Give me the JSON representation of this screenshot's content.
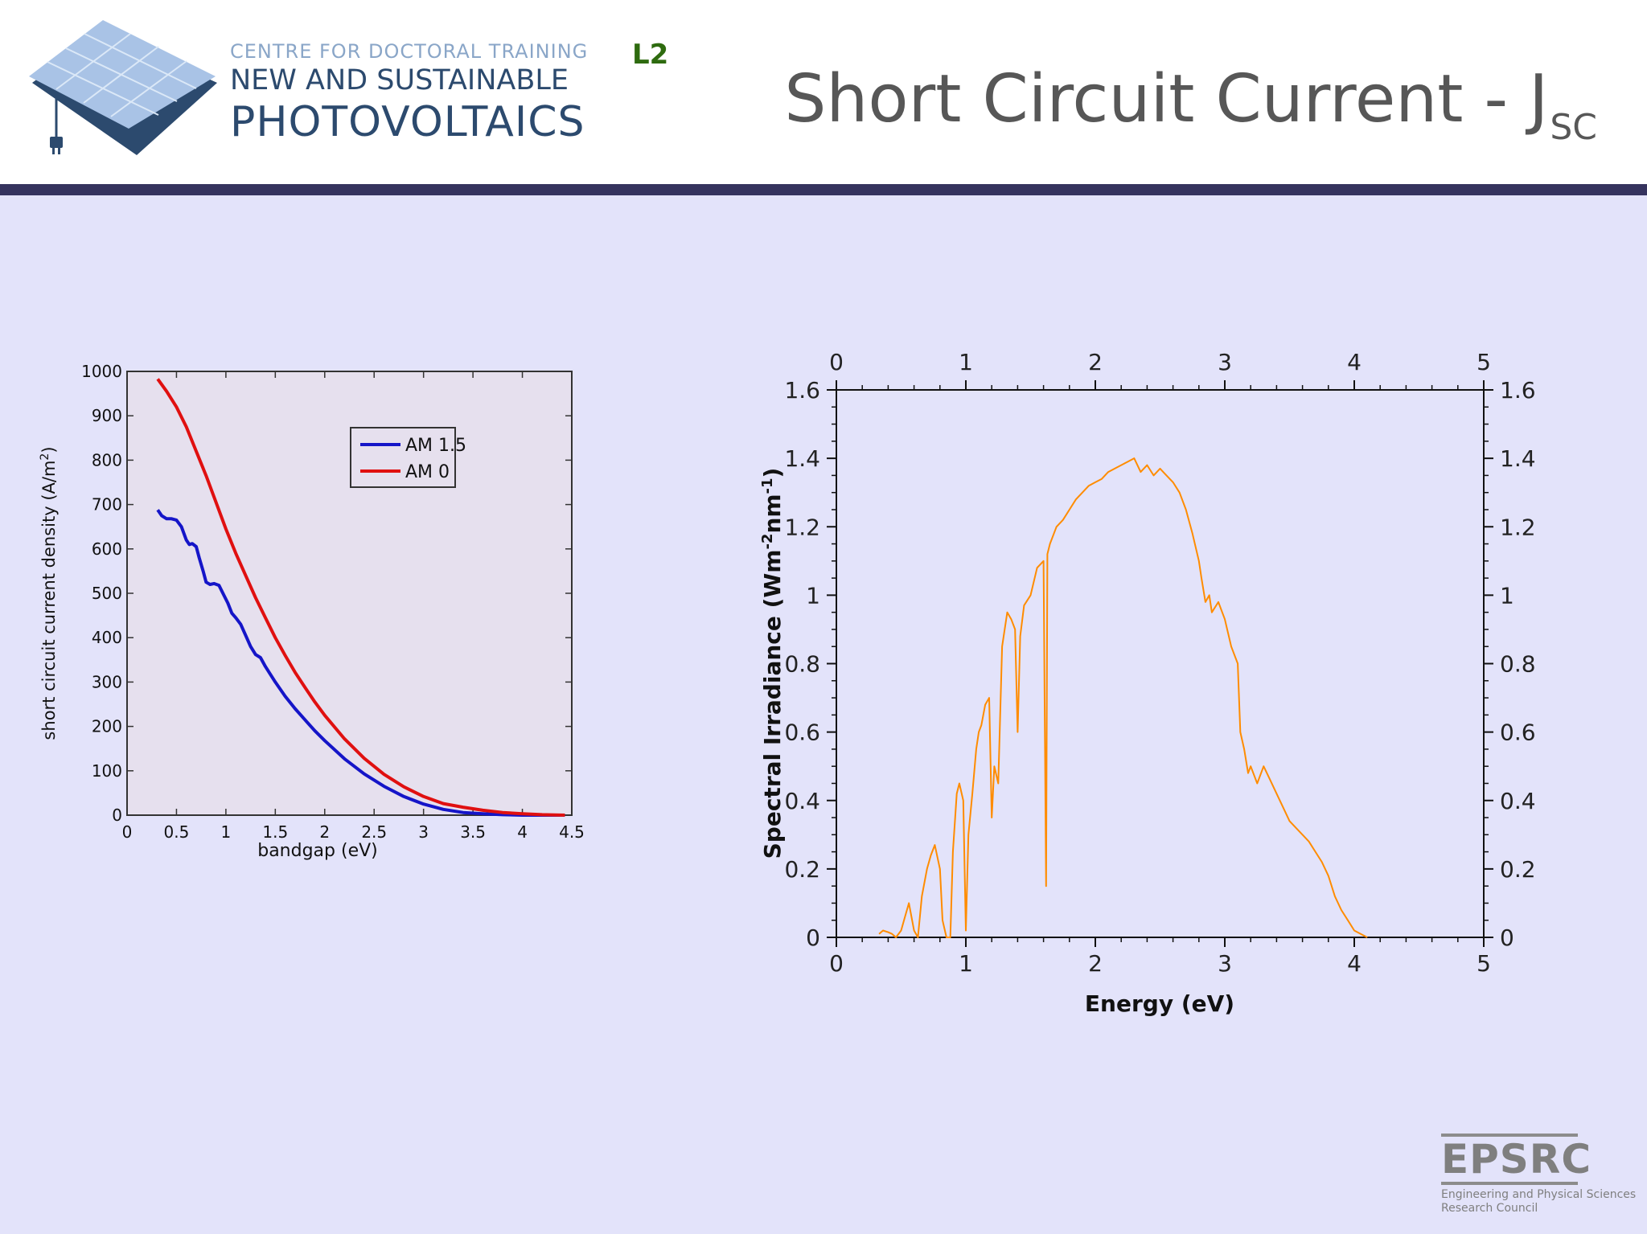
{
  "header": {
    "logo": {
      "line1": "CENTRE FOR DOCTORAL TRAINING",
      "line2": "NEW AND SUSTAINABLE",
      "line3": "PHOTOVOLTAICS"
    },
    "badge": "L2",
    "title": "Short Circuit Current - J",
    "title_subscript": "SC"
  },
  "colors": {
    "divider": "#35335e",
    "content_background": "#e3e3fa",
    "am15": "#1515c8",
    "am0": "#e01010",
    "spectrum": "#ff8c00",
    "title": "#575757"
  },
  "footer": {
    "logo_word": "EPSRC",
    "logo_line1": "Engineering and Physical Sciences",
    "logo_line2": "Research Council"
  },
  "chart_data": [
    {
      "type": "line",
      "xlabel": "bandgap (eV)",
      "ylabel": "short circuit current density  (A/m",
      "ylabel_sup": "2",
      "ylabel_end": ")",
      "xlim": [
        0,
        4.5
      ],
      "ylim": [
        0,
        1000
      ],
      "xticks": [
        0,
        0.5,
        1,
        1.5,
        2,
        2.5,
        3,
        3.5,
        4,
        4.5
      ],
      "xtick_labels": [
        "0",
        "0.5",
        "1",
        "1.5",
        "2",
        "2.5",
        "3",
        "3.5",
        "4",
        "4.5"
      ],
      "yticks": [
        0,
        100,
        200,
        300,
        400,
        500,
        600,
        700,
        800,
        900,
        1000
      ],
      "ytick_labels": [
        "0",
        "100",
        "200",
        "300",
        "400",
        "500",
        "600",
        "700",
        "800",
        "900",
        "1000"
      ],
      "grid": false,
      "legend_position": "center-right",
      "series": [
        {
          "name": "AM 1.5",
          "color": "#1515c8",
          "x": [
            0.31,
            0.35,
            0.4,
            0.45,
            0.5,
            0.55,
            0.6,
            0.63,
            0.66,
            0.7,
            0.73,
            0.77,
            0.8,
            0.84,
            0.88,
            0.93,
            0.97,
            1.02,
            1.06,
            1.1,
            1.15,
            1.2,
            1.25,
            1.3,
            1.35,
            1.4,
            1.5,
            1.6,
            1.7,
            1.8,
            1.9,
            2.0,
            2.2,
            2.4,
            2.6,
            2.8,
            3.0,
            3.2,
            3.4,
            3.6,
            3.8,
            4.0,
            4.2,
            4.43
          ],
          "y": [
            688,
            675,
            668,
            668,
            665,
            650,
            620,
            610,
            612,
            605,
            580,
            550,
            525,
            520,
            522,
            518,
            500,
            478,
            455,
            445,
            430,
            405,
            380,
            362,
            355,
            335,
            300,
            268,
            240,
            215,
            190,
            168,
            127,
            93,
            65,
            42,
            25,
            13,
            6,
            3,
            1,
            0,
            0,
            0
          ]
        },
        {
          "name": "AM 0",
          "color": "#e01010",
          "x": [
            0.31,
            0.4,
            0.5,
            0.6,
            0.7,
            0.8,
            0.9,
            1.0,
            1.1,
            1.2,
            1.3,
            1.4,
            1.5,
            1.6,
            1.7,
            1.8,
            1.9,
            2.0,
            2.2,
            2.4,
            2.6,
            2.8,
            3.0,
            3.2,
            3.4,
            3.6,
            3.8,
            4.0,
            4.2,
            4.43
          ],
          "y": [
            983,
            955,
            920,
            875,
            820,
            765,
            705,
            645,
            590,
            540,
            490,
            445,
            400,
            360,
            322,
            288,
            255,
            225,
            172,
            128,
            92,
            64,
            42,
            26,
            18,
            11,
            6,
            3,
            1,
            0
          ]
        }
      ]
    },
    {
      "type": "line",
      "xlabel": "Energy (eV)",
      "ylabel": "Spectral Irradiance (Wm",
      "ylabel_sup1": "-2",
      "ylabel_mid": "nm",
      "ylabel_sup2": "-1",
      "ylabel_end": ")",
      "xlim": [
        0,
        5
      ],
      "ylim": [
        0,
        1.6
      ],
      "xticks": [
        0,
        1,
        2,
        3,
        4,
        5
      ],
      "xtick_labels": [
        "0",
        "1",
        "2",
        "3",
        "4",
        "5"
      ],
      "yticks": [
        0,
        0.2,
        0.4,
        0.6,
        0.8,
        1,
        1.2,
        1.4,
        1.6
      ],
      "ytick_labels": [
        "0",
        "0.2",
        "0.4",
        "0.6",
        "0.8",
        "1",
        "1.2",
        "1.4",
        "1.6"
      ],
      "mirror_axes": true,
      "grid": false,
      "series": [
        {
          "color": "#ff8c00",
          "x": [
            0.33,
            0.36,
            0.4,
            0.43,
            0.46,
            0.5,
            0.53,
            0.56,
            0.6,
            0.63,
            0.66,
            0.7,
            0.73,
            0.76,
            0.8,
            0.82,
            0.85,
            0.88,
            0.9,
            0.93,
            0.95,
            0.98,
            1.0,
            1.02,
            1.05,
            1.08,
            1.1,
            1.12,
            1.15,
            1.18,
            1.2,
            1.22,
            1.25,
            1.28,
            1.3,
            1.32,
            1.35,
            1.38,
            1.4,
            1.42,
            1.45,
            1.5,
            1.55,
            1.6,
            1.62,
            1.63,
            1.65,
            1.7,
            1.75,
            1.8,
            1.85,
            1.9,
            1.95,
            2.0,
            2.05,
            2.1,
            2.15,
            2.2,
            2.25,
            2.3,
            2.35,
            2.4,
            2.45,
            2.5,
            2.55,
            2.6,
            2.65,
            2.7,
            2.75,
            2.8,
            2.82,
            2.85,
            2.88,
            2.9,
            2.95,
            3.0,
            3.05,
            3.1,
            3.12,
            3.15,
            3.18,
            3.2,
            3.25,
            3.3,
            3.35,
            3.4,
            3.45,
            3.5,
            3.55,
            3.6,
            3.65,
            3.7,
            3.75,
            3.8,
            3.85,
            3.9,
            3.95,
            4.0,
            4.05,
            4.1
          ],
          "y": [
            0.01,
            0.02,
            0.015,
            0.01,
            0.0,
            0.02,
            0.06,
            0.1,
            0.02,
            0.0,
            0.12,
            0.2,
            0.24,
            0.27,
            0.2,
            0.05,
            0.0,
            0.0,
            0.25,
            0.42,
            0.45,
            0.4,
            0.02,
            0.3,
            0.42,
            0.55,
            0.6,
            0.62,
            0.68,
            0.7,
            0.35,
            0.5,
            0.45,
            0.85,
            0.9,
            0.95,
            0.93,
            0.9,
            0.6,
            0.88,
            0.97,
            1.0,
            1.08,
            1.1,
            0.15,
            1.12,
            1.15,
            1.2,
            1.22,
            1.25,
            1.28,
            1.3,
            1.32,
            1.33,
            1.34,
            1.36,
            1.37,
            1.38,
            1.39,
            1.4,
            1.36,
            1.38,
            1.35,
            1.37,
            1.35,
            1.33,
            1.3,
            1.25,
            1.18,
            1.1,
            1.05,
            0.98,
            1.0,
            0.95,
            0.98,
            0.93,
            0.85,
            0.8,
            0.6,
            0.55,
            0.48,
            0.5,
            0.45,
            0.5,
            0.46,
            0.42,
            0.38,
            0.34,
            0.32,
            0.3,
            0.28,
            0.25,
            0.22,
            0.18,
            0.12,
            0.08,
            0.05,
            0.02,
            0.01,
            0.0
          ]
        }
      ]
    }
  ]
}
